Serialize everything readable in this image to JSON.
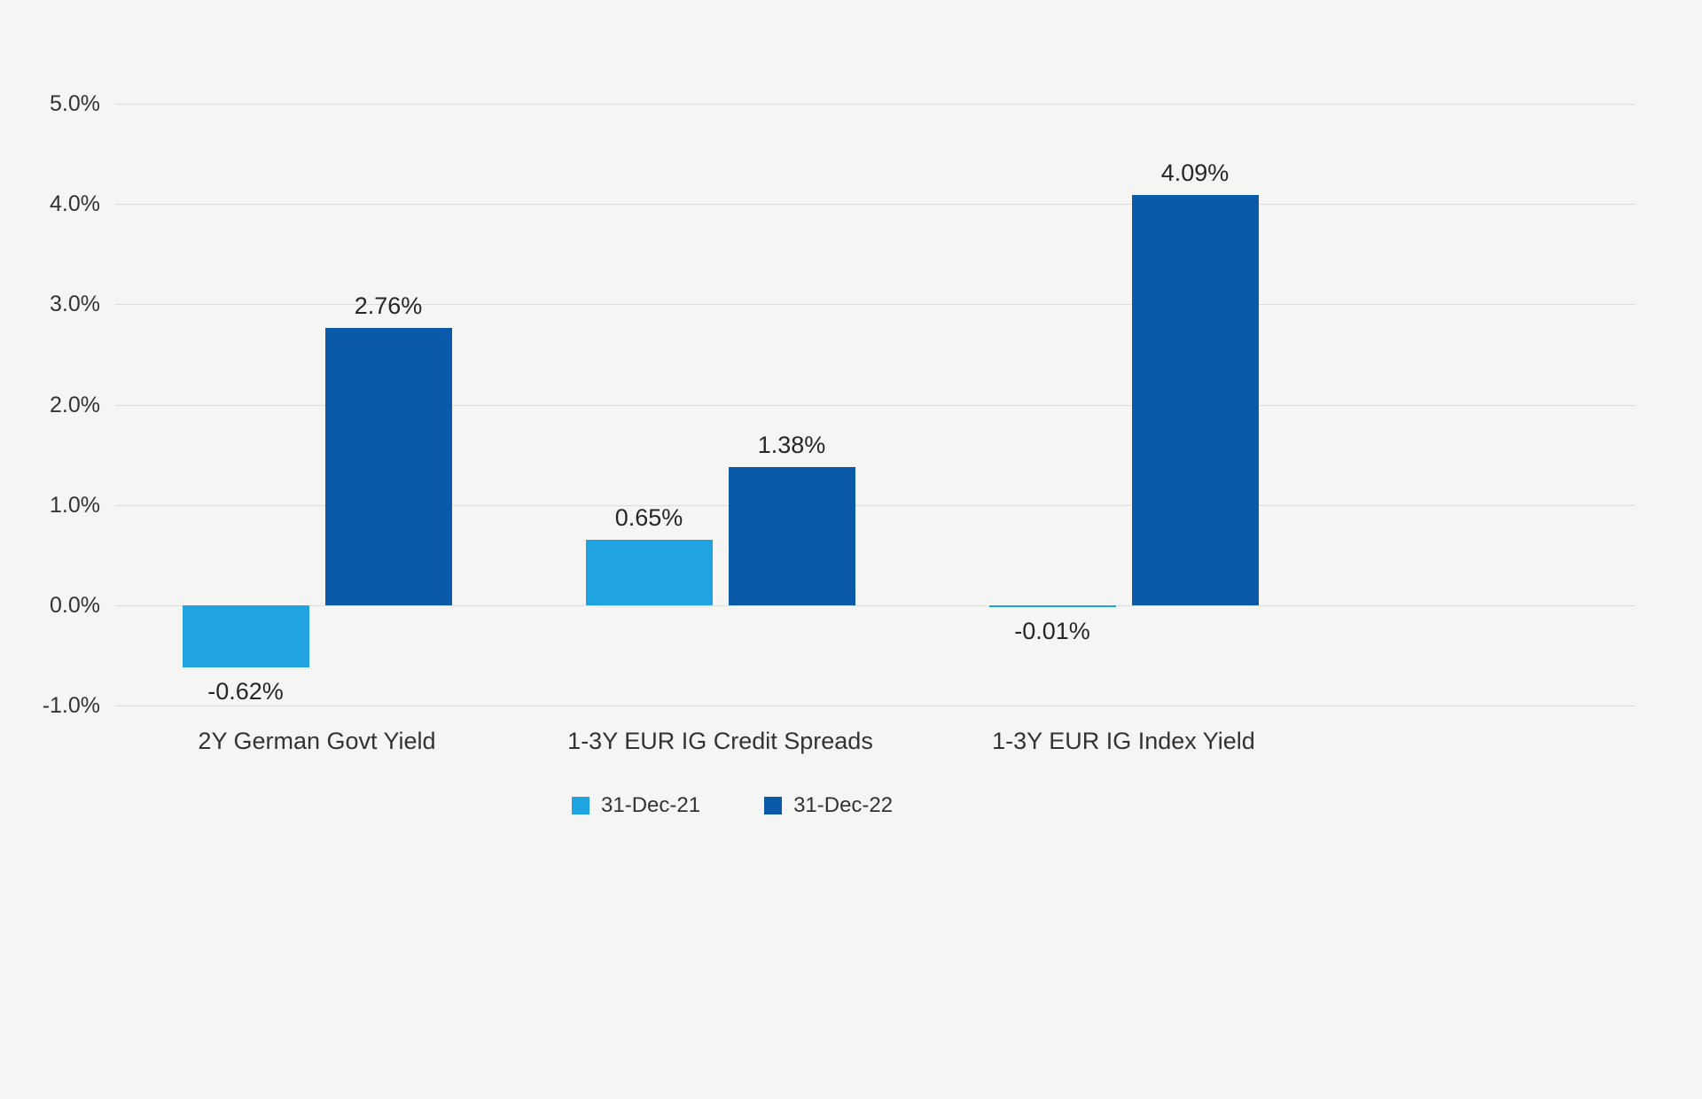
{
  "chart": {
    "background": "#f5f5f3",
    "grid_color": "#dcdcdc",
    "text_color": "#333333"
  },
  "chart_data": {
    "type": "bar",
    "title": "",
    "xlabel": "",
    "ylabel": "",
    "categories": [
      "2Y German Govt Yield",
      "1-3Y EUR IG Credit Spreads",
      "1-3Y EUR IG Index Yield"
    ],
    "series": [
      {
        "name": "31-Dec-21",
        "color": "#1fa4e1",
        "values": [
          -0.62,
          0.65,
          -0.01
        ],
        "labels": [
          "-0.62%",
          "0.65%",
          "-0.01%"
        ]
      },
      {
        "name": "31-Dec-22",
        "color": "#0a5aa9",
        "values": [
          2.76,
          1.38,
          4.09
        ],
        "labels": [
          "2.76%",
          "1.38%",
          "4.09%"
        ]
      }
    ],
    "ylim": [
      -1.0,
      5.0
    ],
    "yticks": [
      {
        "label": "5.0%",
        "value": 5.0
      },
      {
        "label": "4.0%",
        "value": 4.0
      },
      {
        "label": "3.0%",
        "value": 3.0
      },
      {
        "label": "2.0%",
        "value": 2.0
      },
      {
        "label": "1.0%",
        "value": 1.0
      },
      {
        "label": "0.0%",
        "value": 0.0
      },
      {
        "label": "-1.0%",
        "value": -1.0
      }
    ],
    "grid": true,
    "legend_position": "bottom-center"
  }
}
